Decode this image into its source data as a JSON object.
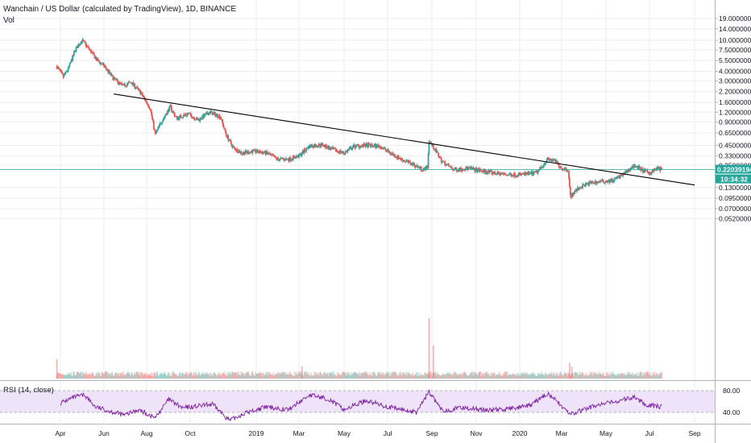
{
  "header": {
    "title": "Wanchain / US Dollar (calculated by TradingView), 1D, BINANCE",
    "volume_label": "Vol",
    "rsi_label": "RSI (14, close)"
  },
  "colors": {
    "up": "#26a69a",
    "down": "#ef5350",
    "trendline": "#000000",
    "price_line": "#26a69a",
    "rsi_line": "#7b1fa2",
    "rsi_band": "#efe3f9",
    "grid": "#eceef2"
  },
  "chart_data": {
    "type": "candlestick",
    "scale": "log",
    "x_ticks": [
      "Apr",
      "Jun",
      "Aug",
      "Oct",
      "2019",
      "Mar",
      "May",
      "Jul",
      "Sep",
      "Nov",
      "2020",
      "Mar",
      "May",
      "Jul",
      "Sep"
    ],
    "y_ticks": [
      "19.00000000",
      "14.00000000",
      "10.00000000",
      "7.50000000",
      "5.50000000",
      "4.00000000",
      "3.00000000",
      "2.20000000",
      "1.60000000",
      "1.20000000",
      "0.90000000",
      "0.65000000",
      "0.45000000",
      "0.33000000",
      "0.25000000",
      "0.13000000",
      "0.09500000",
      "0.07000000",
      "0.05200000"
    ],
    "rsi_ticks": [
      "80.00",
      "40.00"
    ],
    "current_price": "0.22039194",
    "countdown": "10:34:32",
    "price_path": [
      {
        "t": "2018-03-27",
        "p": 4.6
      },
      {
        "t": "2018-04-05",
        "p": 3.4
      },
      {
        "t": "2018-04-12",
        "p": 4.3
      },
      {
        "t": "2018-04-22",
        "p": 7.6
      },
      {
        "t": "2018-05-01",
        "p": 10.0
      },
      {
        "t": "2018-05-10",
        "p": 8.0
      },
      {
        "t": "2018-05-22",
        "p": 5.6
      },
      {
        "t": "2018-06-02",
        "p": 4.6
      },
      {
        "t": "2018-06-15",
        "p": 3.2
      },
      {
        "t": "2018-06-28",
        "p": 2.6
      },
      {
        "t": "2018-07-10",
        "p": 2.9
      },
      {
        "t": "2018-07-24",
        "p": 2.1
      },
      {
        "t": "2018-08-06",
        "p": 1.35
      },
      {
        "t": "2018-08-13",
        "p": 0.62
      },
      {
        "t": "2018-08-22",
        "p": 0.92
      },
      {
        "t": "2018-09-03",
        "p": 1.4
      },
      {
        "t": "2018-09-12",
        "p": 1.0
      },
      {
        "t": "2018-09-28",
        "p": 1.15
      },
      {
        "t": "2018-10-12",
        "p": 0.95
      },
      {
        "t": "2018-10-28",
        "p": 1.2
      },
      {
        "t": "2018-11-12",
        "p": 1.05
      },
      {
        "t": "2018-11-20",
        "p": 0.62
      },
      {
        "t": "2018-11-30",
        "p": 0.42
      },
      {
        "t": "2018-12-12",
        "p": 0.36
      },
      {
        "t": "2018-12-28",
        "p": 0.38
      },
      {
        "t": "2019-01-15",
        "p": 0.36
      },
      {
        "t": "2019-01-30",
        "p": 0.3
      },
      {
        "t": "2019-02-15",
        "p": 0.3
      },
      {
        "t": "2019-03-01",
        "p": 0.33
      },
      {
        "t": "2019-03-15",
        "p": 0.44
      },
      {
        "t": "2019-04-01",
        "p": 0.46
      },
      {
        "t": "2019-04-15",
        "p": 0.4
      },
      {
        "t": "2019-05-01",
        "p": 0.36
      },
      {
        "t": "2019-05-15",
        "p": 0.44
      },
      {
        "t": "2019-06-01",
        "p": 0.45
      },
      {
        "t": "2019-06-20",
        "p": 0.44
      },
      {
        "t": "2019-07-05",
        "p": 0.36
      },
      {
        "t": "2019-07-20",
        "p": 0.3
      },
      {
        "t": "2019-08-05",
        "p": 0.26
      },
      {
        "t": "2019-08-20",
        "p": 0.22
      },
      {
        "t": "2019-08-26",
        "p": 0.24
      },
      {
        "t": "2019-08-28",
        "p": 0.52
      },
      {
        "t": "2019-09-05",
        "p": 0.4
      },
      {
        "t": "2019-09-15",
        "p": 0.28
      },
      {
        "t": "2019-10-01",
        "p": 0.22
      },
      {
        "t": "2019-10-20",
        "p": 0.23
      },
      {
        "t": "2019-11-05",
        "p": 0.215
      },
      {
        "t": "2019-11-25",
        "p": 0.2
      },
      {
        "t": "2019-12-15",
        "p": 0.19
      },
      {
        "t": "2020-01-01",
        "p": 0.19
      },
      {
        "t": "2020-01-25",
        "p": 0.2
      },
      {
        "t": "2020-02-10",
        "p": 0.3
      },
      {
        "t": "2020-02-22",
        "p": 0.28
      },
      {
        "t": "2020-03-01",
        "p": 0.23
      },
      {
        "t": "2020-03-10",
        "p": 0.22
      },
      {
        "t": "2020-03-13",
        "p": 0.1
      },
      {
        "t": "2020-03-25",
        "p": 0.13
      },
      {
        "t": "2020-04-10",
        "p": 0.15
      },
      {
        "t": "2020-04-25",
        "p": 0.155
      },
      {
        "t": "2020-05-10",
        "p": 0.16
      },
      {
        "t": "2020-05-25",
        "p": 0.19
      },
      {
        "t": "2020-06-10",
        "p": 0.25
      },
      {
        "t": "2020-06-20",
        "p": 0.22
      },
      {
        "t": "2020-07-01",
        "p": 0.2
      },
      {
        "t": "2020-07-12",
        "p": 0.23
      },
      {
        "t": "2020-07-18",
        "p": 0.22
      }
    ],
    "rsi_path": [
      {
        "t": "2018-04-01",
        "v": 57
      },
      {
        "t": "2018-04-20",
        "v": 68
      },
      {
        "t": "2018-05-05",
        "v": 72
      },
      {
        "t": "2018-05-20",
        "v": 50
      },
      {
        "t": "2018-06-10",
        "v": 42
      },
      {
        "t": "2018-07-01",
        "v": 35
      },
      {
        "t": "2018-07-20",
        "v": 45
      },
      {
        "t": "2018-08-13",
        "v": 30
      },
      {
        "t": "2018-09-01",
        "v": 64
      },
      {
        "t": "2018-09-20",
        "v": 48
      },
      {
        "t": "2018-10-15",
        "v": 52
      },
      {
        "t": "2018-11-01",
        "v": 55
      },
      {
        "t": "2018-11-25",
        "v": 25
      },
      {
        "t": "2018-12-15",
        "v": 38
      },
      {
        "t": "2019-01-15",
        "v": 50
      },
      {
        "t": "2019-02-15",
        "v": 45
      },
      {
        "t": "2019-03-15",
        "v": 72
      },
      {
        "t": "2019-04-10",
        "v": 65
      },
      {
        "t": "2019-05-01",
        "v": 45
      },
      {
        "t": "2019-06-01",
        "v": 62
      },
      {
        "t": "2019-07-01",
        "v": 50
      },
      {
        "t": "2019-08-10",
        "v": 40
      },
      {
        "t": "2019-08-28",
        "v": 78
      },
      {
        "t": "2019-09-15",
        "v": 43
      },
      {
        "t": "2019-10-15",
        "v": 49
      },
      {
        "t": "2019-11-15",
        "v": 44
      },
      {
        "t": "2019-12-15",
        "v": 46
      },
      {
        "t": "2020-01-15",
        "v": 52
      },
      {
        "t": "2020-02-10",
        "v": 75
      },
      {
        "t": "2020-03-01",
        "v": 52
      },
      {
        "t": "2020-03-13",
        "v": 36
      },
      {
        "t": "2020-04-15",
        "v": 52
      },
      {
        "t": "2020-05-15",
        "v": 60
      },
      {
        "t": "2020-06-10",
        "v": 68
      },
      {
        "t": "2020-06-25",
        "v": 55
      },
      {
        "t": "2020-07-10",
        "v": 52
      },
      {
        "t": "2020-07-18",
        "v": 50
      }
    ],
    "trendline": [
      {
        "t": "2018-06-15",
        "p": 2.05
      },
      {
        "t": "2020-09-01",
        "p": 0.14
      }
    ],
    "volume_spikes": [
      {
        "t": "2018-03-27",
        "v": 0.32
      },
      {
        "t": "2019-03-05",
        "v": 0.2
      },
      {
        "t": "2019-08-28",
        "v": 1.0
      },
      {
        "t": "2019-09-03",
        "v": 0.55
      },
      {
        "t": "2020-03-12",
        "v": 0.26
      },
      {
        "t": "2020-03-15",
        "v": 0.2
      }
    ]
  }
}
